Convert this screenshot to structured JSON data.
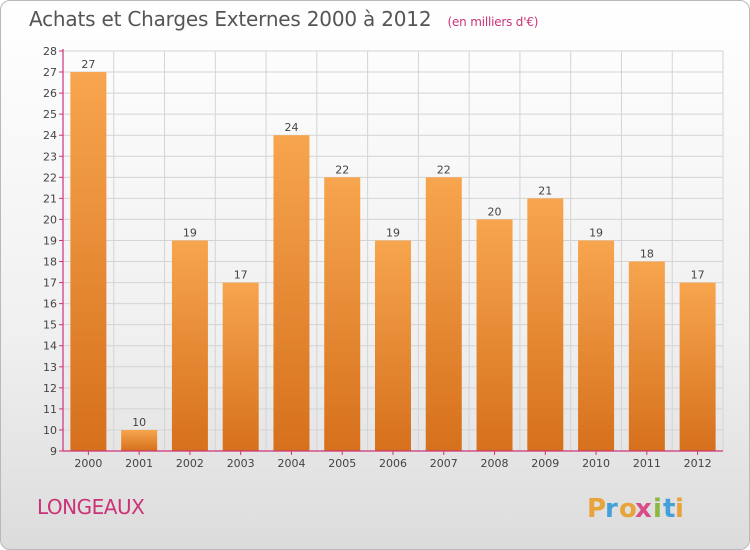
{
  "header": {
    "title": "Achats et Charges Externes 2000 à 2012",
    "subtitle": "(en milliers d'€)"
  },
  "commune": "LONGEAUX",
  "logo": {
    "letters": [
      "P",
      "r",
      "o",
      "x",
      "i",
      "t",
      "i"
    ],
    "colors": [
      "#e8a33a",
      "#43a0d8",
      "#e8a33a",
      "#d94c8a",
      "#8ab840",
      "#43a0d8",
      "#e8a33a"
    ]
  },
  "chart_data": {
    "type": "bar",
    "title": "Achats et Charges Externes 2000 à 2012",
    "subtitle": "(en milliers d'€)",
    "categories": [
      "2000",
      "2001",
      "2002",
      "2003",
      "2004",
      "2005",
      "2006",
      "2007",
      "2008",
      "2009",
      "2010",
      "2011",
      "2012"
    ],
    "values": [
      27,
      10,
      19,
      17,
      24,
      22,
      19,
      22,
      20,
      21,
      19,
      18,
      17
    ],
    "ylim": [
      9,
      28
    ],
    "yticks": [
      9,
      10,
      11,
      12,
      13,
      14,
      15,
      16,
      17,
      18,
      19,
      20,
      21,
      22,
      23,
      24,
      25,
      26,
      27,
      28
    ],
    "grid": true,
    "bar_color": "#f08c2c",
    "axis_color": "#cc3377"
  }
}
